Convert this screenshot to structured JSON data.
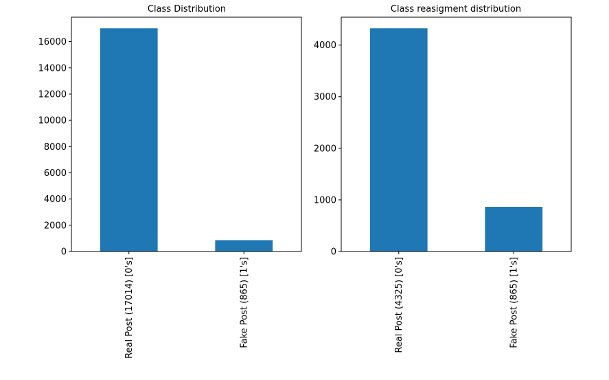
{
  "chart_data": [
    {
      "type": "bar",
      "title": "Class Distribution",
      "xlabel": "",
      "ylabel": "",
      "categories": [
        "Real Post (17014) [0's]",
        "Fake Post (865) [1's]"
      ],
      "values": [
        17014,
        865
      ],
      "ylim": [
        0,
        17864
      ],
      "yticks": [
        0,
        2000,
        4000,
        6000,
        8000,
        10000,
        12000,
        14000,
        16000
      ],
      "color": "#1f77b4",
      "grid": false,
      "legend": "none"
    },
    {
      "type": "bar",
      "title": "Class reasigment distribution",
      "xlabel": "",
      "ylabel": "",
      "categories": [
        "Real Post (4325) [0's]",
        "Fake Post (865) [1's]"
      ],
      "values": [
        4325,
        865
      ],
      "ylim": [
        0,
        4541
      ],
      "yticks": [
        0,
        1000,
        2000,
        3000,
        4000
      ],
      "color": "#1f77b4",
      "grid": false,
      "legend": "none"
    }
  ]
}
